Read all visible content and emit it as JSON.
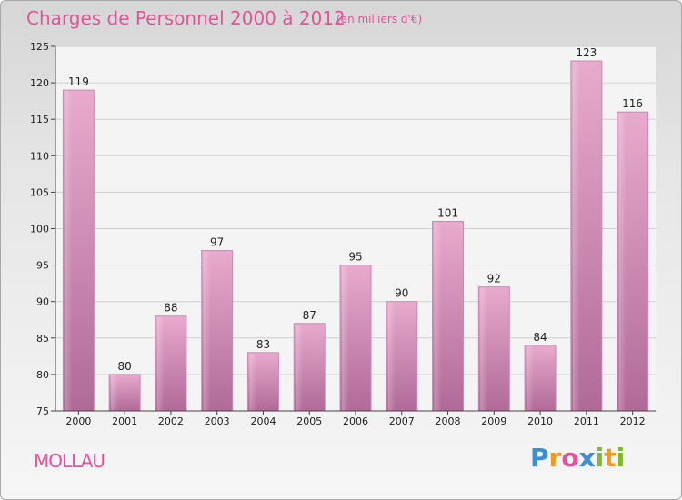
{
  "title": "Charges de Personnel 2000 à 2012",
  "subtitle": "(en milliers d'€)",
  "place": "MOLLAU",
  "logo": {
    "letters": [
      "P",
      "r",
      "o",
      "x",
      "i",
      "t",
      "i"
    ],
    "colors": [
      "#3a8fd6",
      "#f29a1f",
      "#e0559a",
      "#3a8fd6",
      "#7cbb2e",
      "#f29a1f",
      "#7cbb2e"
    ]
  },
  "colors": {
    "bar": "#d68bb6",
    "bar_light": "#e8aacd",
    "bar_dark": "#b06a98",
    "title": "#e0559a"
  },
  "chart_data": {
    "type": "bar",
    "categories": [
      "2000",
      "2001",
      "2002",
      "2003",
      "2004",
      "2005",
      "2006",
      "2007",
      "2008",
      "2009",
      "2010",
      "2011",
      "2012"
    ],
    "values": [
      119,
      80,
      88,
      97,
      83,
      87,
      95,
      90,
      101,
      92,
      84,
      123,
      116
    ],
    "ylim": [
      75,
      125
    ],
    "yticks": [
      75,
      80,
      85,
      90,
      95,
      100,
      105,
      110,
      115,
      120,
      125
    ],
    "grid": true
  }
}
